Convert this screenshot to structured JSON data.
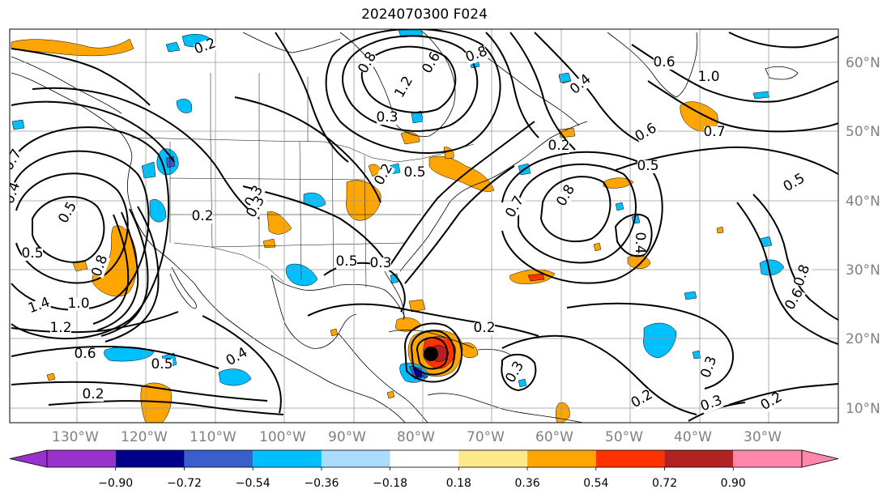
{
  "title": "2024070300 F024",
  "map": {
    "lon_ticks": [
      "130°W",
      "120°W",
      "110°W",
      "100°W",
      "90°W",
      "80°W",
      "70°W",
      "60°W",
      "50°W",
      "40°W",
      "30°W"
    ],
    "lat_ticks": [
      "10°N",
      "20°N",
      "30°N",
      "40°N",
      "50°N",
      "60°N"
    ],
    "contour_labels": [
      "0.2",
      "0.8",
      "0.6",
      "0.8",
      "0.6",
      "0.3",
      "1.2",
      "0.2",
      "0.5",
      "1.0",
      "0.7",
      "0.5",
      "0.4",
      "0.5",
      "0.7",
      "0.8",
      "0.6",
      "0.2",
      "0.4",
      "0.3",
      "0.4",
      "0.7",
      "0.5",
      "0.5",
      "0.8",
      "1.4",
      "1.0",
      "1.2",
      "0.6",
      "0.2",
      "0.5",
      "0.4",
      "0.2",
      "0.3",
      "0.3",
      "0.2",
      "0.3",
      "0.2",
      "0.5",
      "0.3",
      "0.8",
      "0.6",
      "0.3",
      "0.2"
    ],
    "colors": {
      "orange": "#ffa500",
      "red": "#ff3300",
      "darkred": "#b22222",
      "cyan": "#00bfff",
      "lightblue": "#aadcff",
      "blue": "#3a5fcd",
      "navy": "#00008b",
      "purple": "#9932cc",
      "pink": "#ff88aa",
      "yellow": "#ffe88a"
    }
  },
  "colorbar": {
    "labels": [
      "−0.90",
      "−0.72",
      "−0.54",
      "−0.36",
      "−0.18",
      "0.18",
      "0.36",
      "0.54",
      "0.72",
      "0.90"
    ],
    "colors": [
      "#9932cc",
      "#00008b",
      "#3a5fcd",
      "#00bfff",
      "#aadcff",
      "#ffffff",
      "#ffe88a",
      "#ffa500",
      "#ff3300",
      "#b22222",
      "#ff88aa"
    ]
  }
}
